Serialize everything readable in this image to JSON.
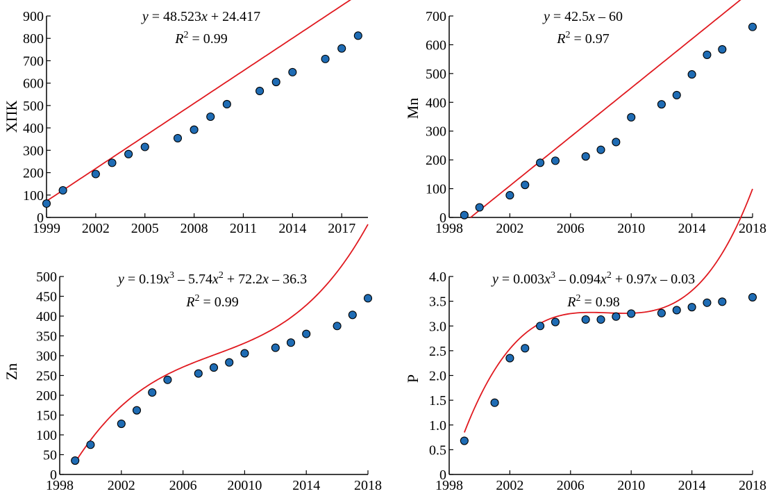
{
  "chart_data": [
    {
      "id": "xptk",
      "type": "scatter",
      "ylabel": "ХПК",
      "xlabel": "",
      "equation": "y = 48.523x + 24.417",
      "r2": "R² = 0.99",
      "x_ticks": [
        "1999",
        "2002",
        "2005",
        "2008",
        "2011",
        "2014",
        "2017"
      ],
      "y_ticks": [
        "0",
        "100",
        "200",
        "300",
        "400",
        "500",
        "600",
        "700",
        "800",
        "900"
      ],
      "xlim": [
        1999,
        2018.6
      ],
      "ylim": [
        0,
        900
      ],
      "series": [
        {
          "x": [
            1999,
            2000,
            2002,
            2003,
            2004,
            2005,
            2007,
            2008,
            2009,
            2010,
            2012,
            2013,
            2014,
            2016,
            2017,
            2018
          ],
          "y": [
            62,
            121,
            194,
            244,
            283,
            315,
            354,
            392,
            450,
            506,
            565,
            605,
            649,
            708,
            755,
            812
          ]
        }
      ],
      "fit": {
        "kind": "linear",
        "coeffs": [
          24.417,
          48.523
        ],
        "index_base": 1998,
        "x_range": [
          1999,
          2018
        ]
      }
    },
    {
      "id": "mn",
      "type": "scatter",
      "ylabel": "Mn",
      "xlabel": "",
      "equation": "y = 42.5x – 60",
      "r2": "R² = 0.97",
      "x_ticks": [
        "1998",
        "2002",
        "2006",
        "2010",
        "2014",
        "2018"
      ],
      "y_ticks": [
        "0",
        "100",
        "200",
        "300",
        "400",
        "500",
        "600",
        "700"
      ],
      "xlim": [
        1998,
        2018
      ],
      "ylim": [
        0,
        700
      ],
      "series": [
        {
          "x": [
            1999,
            2000,
            2002,
            2003,
            2004,
            2005,
            2007,
            2008,
            2009,
            2010,
            2012,
            2013,
            2014,
            2015,
            2016,
            2018
          ],
          "y": [
            8,
            35,
            77,
            113,
            190,
            197,
            212,
            235,
            262,
            348,
            393,
            425,
            497,
            565,
            584,
            662
          ]
        }
      ],
      "fit": {
        "kind": "linear",
        "coeffs": [
          -60,
          42.5
        ],
        "index_base": 1998,
        "x_range": [
          1999.41,
          2018
        ]
      }
    },
    {
      "id": "zn",
      "type": "scatter",
      "ylabel": "Zn",
      "xlabel": "",
      "equation": "y = 0.19x³ – 5.74x² + 72.2x – 36.3",
      "r2": "R² = 0.99",
      "x_ticks": [
        "1998",
        "2002",
        "2006",
        "20010",
        "2014",
        "2018"
      ],
      "y_ticks": [
        "0",
        "50",
        "100",
        "150",
        "200",
        "250",
        "300",
        "350",
        "400",
        "450",
        "500"
      ],
      "xlim": [
        1998,
        2018
      ],
      "ylim": [
        0,
        500
      ],
      "series": [
        {
          "x": [
            1999,
            2000,
            2002,
            2003,
            2004,
            2005,
            2007,
            2008,
            2009,
            2010,
            2012,
            2013,
            2014,
            2016,
            2017,
            2018
          ],
          "y": [
            35,
            75,
            128,
            162,
            207,
            239,
            255,
            270,
            283,
            306,
            320,
            333,
            355,
            375,
            403,
            445
          ]
        }
      ],
      "fit": {
        "kind": "cubic",
        "coeffs": [
          -36.3,
          72.2,
          -5.74,
          0.19
        ],
        "index_base": 1998,
        "x_range": [
          1999,
          2018
        ]
      }
    },
    {
      "id": "p",
      "type": "scatter",
      "ylabel": "P",
      "xlabel": "",
      "equation": "y = 0.003x³ – 0.094x² + 0.97x – 0.03",
      "r2": "R² = 0.98",
      "x_ticks": [
        "1998",
        "2002",
        "2006",
        "2010",
        "2014",
        "2018"
      ],
      "y_ticks": [
        "0",
        "0.5",
        "1.0",
        "1.5",
        "2.0",
        "2.5",
        "3.0",
        "3.5",
        "4.0"
      ],
      "xlim": [
        1998,
        2018
      ],
      "ylim": [
        0,
        4.0
      ],
      "series": [
        {
          "x": [
            1999,
            2001,
            2002,
            2003,
            2004,
            2005,
            2007,
            2008,
            2009,
            2010,
            2012,
            2013,
            2014,
            2015,
            2016,
            2018
          ],
          "y": [
            0.68,
            1.45,
            2.35,
            2.55,
            3.0,
            3.08,
            3.13,
            3.13,
            3.19,
            3.25,
            3.26,
            3.32,
            3.38,
            3.47,
            3.49,
            3.58
          ]
        }
      ],
      "fit": {
        "kind": "cubic",
        "coeffs": [
          -0.03,
          0.97,
          -0.094,
          0.003
        ],
        "index_base": 1998,
        "x_range": [
          1999,
          2018
        ]
      }
    }
  ]
}
